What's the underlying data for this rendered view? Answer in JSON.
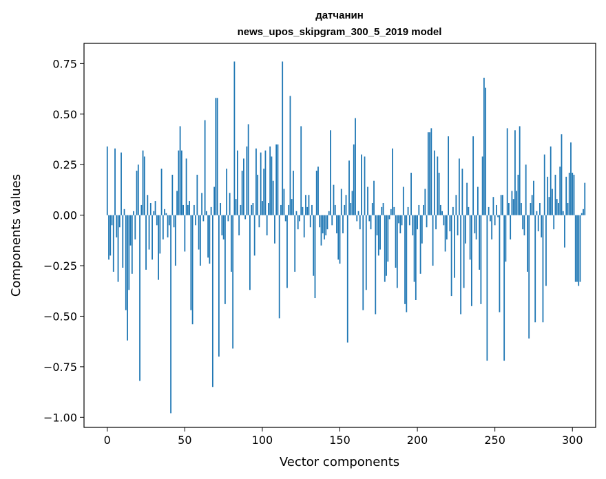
{
  "chart_data": {
    "type": "bar",
    "title_line1": "датчанин",
    "title_line2": "news_upos_skipgram_300_5_2019 model",
    "xlabel": "Vector components",
    "ylabel": "Components values",
    "xlim": [
      -15,
      315
    ],
    "ylim": [
      -1.05,
      0.85
    ],
    "xticks": [
      0,
      50,
      100,
      150,
      200,
      250,
      300
    ],
    "xtick_labels": [
      "0",
      "50",
      "100",
      "150",
      "200",
      "250",
      "300"
    ],
    "yticks": [
      0.75,
      0.5,
      0.25,
      0.0,
      -0.25,
      -0.5,
      -0.75,
      -1.0
    ],
    "ytick_labels": [
      "0.75",
      "0.50",
      "0.25",
      "0.00",
      "−0.25",
      "−0.50",
      "−0.75",
      "−1.00"
    ],
    "bar_color": "#1f77b4",
    "values": [
      0.34,
      -0.22,
      -0.2,
      -0.05,
      -0.28,
      0.33,
      -0.11,
      -0.33,
      -0.06,
      0.31,
      -0.26,
      0.03,
      -0.47,
      -0.62,
      -0.37,
      -0.15,
      -0.29,
      0.02,
      -0.12,
      0.22,
      0.25,
      -0.82,
      0.05,
      0.32,
      0.29,
      -0.27,
      0.1,
      -0.17,
      0.06,
      -0.22,
      0.02,
      0.07,
      -0.05,
      -0.32,
      -0.19,
      0.23,
      -0.12,
      0.03,
      0.01,
      -0.11,
      -0.05,
      -0.98,
      0.2,
      -0.06,
      -0.25,
      0.12,
      0.32,
      0.44,
      0.32,
      0.05,
      -0.18,
      0.28,
      0.05,
      0.07,
      -0.47,
      -0.54,
      0.05,
      -0.05,
      0.2,
      -0.17,
      -0.25,
      0.11,
      -0.03,
      0.47,
      0.02,
      -0.21,
      -0.24,
      0.04,
      -0.85,
      0.14,
      0.58,
      0.58,
      -0.7,
      0.06,
      -0.1,
      -0.12,
      -0.44,
      0.23,
      -0.03,
      0.11,
      -0.28,
      -0.66,
      0.76,
      0.08,
      0.32,
      -0.1,
      0.05,
      0.22,
      0.28,
      -0.02,
      0.34,
      0.45,
      -0.37,
      0.05,
      0.06,
      -0.2,
      0.33,
      0.2,
      -0.06,
      0.31,
      0.07,
      0.23,
      0.32,
      -0.1,
      0.06,
      0.34,
      0.29,
      0.17,
      -0.14,
      0.35,
      0.35,
      -0.51,
      0.05,
      0.76,
      0.13,
      -0.03,
      -0.36,
      0.05,
      0.59,
      0.08,
      0.22,
      -0.28,
      0.02,
      -0.07,
      -0.03,
      0.44,
      0.04,
      -0.11,
      0.1,
      0.04,
      0.1,
      -0.06,
      0.05,
      -0.3,
      -0.41,
      0.22,
      0.24,
      -0.06,
      -0.15,
      -0.09,
      -0.12,
      -0.1,
      -0.07,
      0.02,
      0.42,
      -0.05,
      0.15,
      0.05,
      -0.09,
      -0.22,
      -0.24,
      0.13,
      -0.09,
      0.05,
      0.1,
      -0.63,
      0.27,
      0.06,
      0.12,
      0.35,
      0.48,
      -0.03,
      0.02,
      -0.07,
      0.3,
      -0.47,
      0.29,
      -0.37,
      0.14,
      -0.03,
      -0.07,
      0.06,
      0.17,
      -0.49,
      -0.1,
      -0.2,
      -0.17,
      0.04,
      0.06,
      -0.33,
      -0.3,
      -0.23,
      -0.02,
      0.03,
      0.33,
      0.04,
      -0.26,
      -0.36,
      -0.04,
      -0.09,
      -0.05,
      0.14,
      -0.44,
      -0.48,
      0.04,
      -0.05,
      0.21,
      -0.1,
      -0.33,
      -0.42,
      -0.07,
      0.05,
      -0.29,
      -0.14,
      0.05,
      0.13,
      -0.06,
      0.41,
      0.41,
      0.43,
      -0.25,
      0.32,
      -0.07,
      0.29,
      0.21,
      0.05,
      0.02,
      -0.05,
      -0.18,
      -0.12,
      0.39,
      -0.08,
      -0.4,
      0.04,
      -0.31,
      0.1,
      -0.1,
      0.28,
      -0.49,
      0.23,
      -0.36,
      -0.14,
      0.16,
      0.04,
      -0.22,
      -0.45,
      0.39,
      -0.09,
      -0.12,
      0.14,
      -0.27,
      -0.44,
      0.29,
      0.68,
      0.63,
      -0.72,
      0.04,
      -0.03,
      -0.12,
      0.09,
      -0.05,
      0.05,
      -0.01,
      -0.48,
      0.1,
      0.1,
      -0.72,
      -0.23,
      0.43,
      0.06,
      -0.12,
      0.12,
      0.08,
      0.42,
      0.12,
      0.2,
      0.44,
      0.06,
      -0.07,
      -0.1,
      0.25,
      -0.28,
      -0.61,
      0.06,
      0.1,
      0.17,
      -0.53,
      0.02,
      -0.08,
      0.06,
      -0.11,
      -0.53,
      0.3,
      -0.35,
      0.19,
      0.09,
      0.34,
      0.13,
      -0.07,
      0.2,
      0.08,
      0.06,
      0.24,
      0.4,
      0.02,
      -0.16,
      0.19,
      0.06,
      0.21,
      0.36,
      0.21,
      0.2,
      -0.33,
      -0.33,
      -0.35,
      -0.33,
      0.01,
      0.03,
      0.16
    ]
  }
}
